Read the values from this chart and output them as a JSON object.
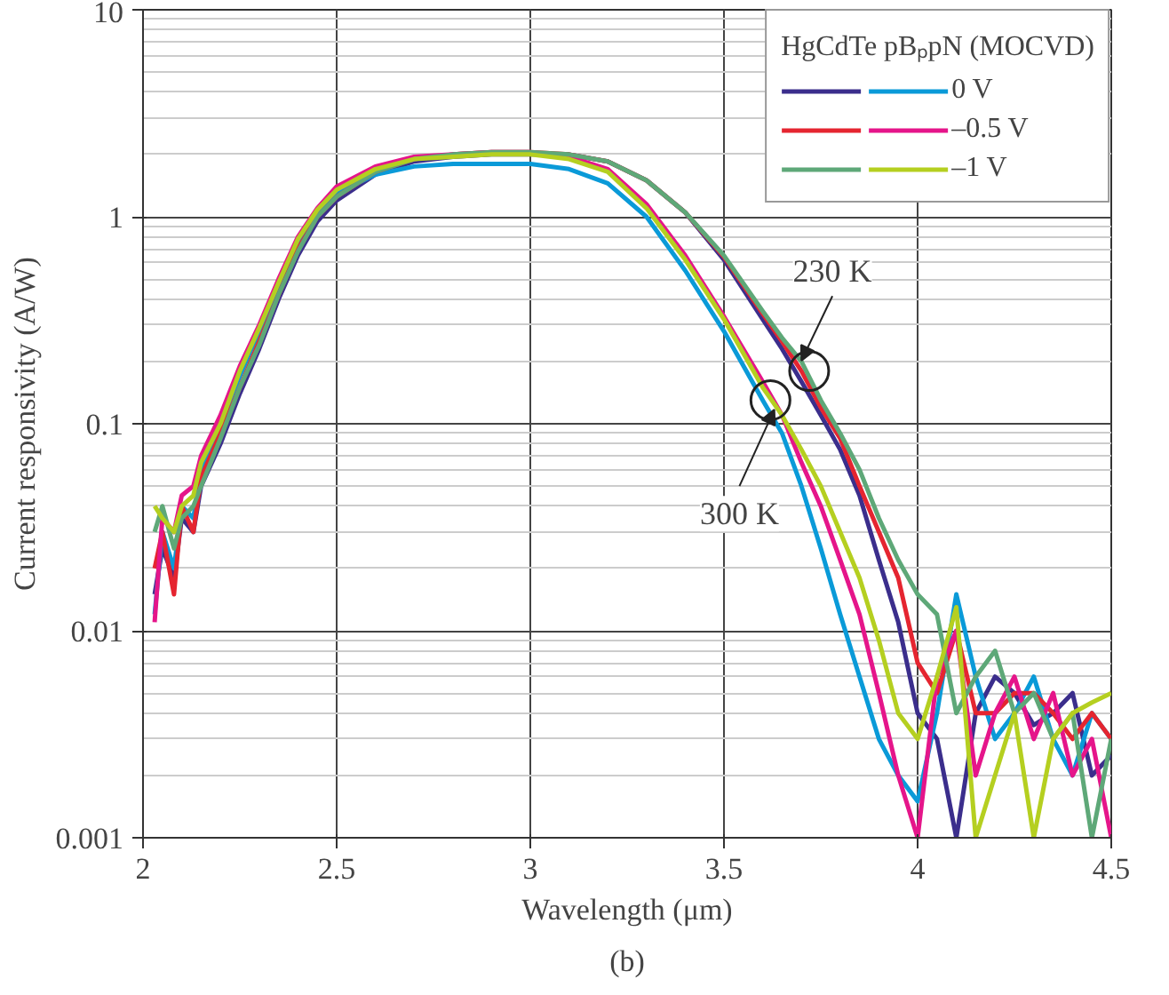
{
  "chart_data": {
    "type": "line",
    "xlabel": "Wavelength (μm)",
    "ylabel": "Current responsivity (A/W)",
    "legend_title": "HgCdTe pBₚpN (MOCVD)",
    "x": [
      2.03,
      2.05,
      2.08,
      2.1,
      2.13,
      2.15,
      2.2,
      2.25,
      2.3,
      2.35,
      2.4,
      2.45,
      2.5,
      2.6,
      2.7,
      2.8,
      2.9,
      3.0,
      3.1,
      3.2,
      3.3,
      3.4,
      3.5,
      3.6,
      3.65,
      3.7,
      3.75,
      3.8,
      3.85,
      3.9,
      3.95,
      4.0,
      4.05,
      4.1,
      4.15,
      4.2,
      4.25,
      4.3,
      4.35,
      4.4,
      4.45,
      4.5
    ],
    "series": [
      {
        "color": "#3b2e8c",
        "values": [
          0.015,
          0.025,
          0.018,
          0.035,
          0.03,
          0.05,
          0.08,
          0.14,
          0.23,
          0.4,
          0.65,
          0.95,
          1.2,
          1.6,
          1.85,
          1.95,
          2.0,
          2.0,
          2.0,
          1.85,
          1.5,
          1.05,
          0.62,
          0.32,
          0.23,
          0.16,
          0.11,
          0.075,
          0.045,
          0.022,
          0.011,
          0.004,
          0.003,
          0.001,
          0.004,
          0.006,
          0.005,
          0.0035,
          0.004,
          0.005,
          0.002,
          0.0025
        ]
      },
      {
        "name": "0 V",
        "color": "#0a9ad8",
        "values": [
          0.012,
          0.03,
          0.02,
          0.04,
          0.035,
          0.06,
          0.1,
          0.17,
          0.28,
          0.45,
          0.75,
          1.05,
          1.3,
          1.6,
          1.75,
          1.8,
          1.8,
          1.8,
          1.7,
          1.45,
          1.0,
          0.55,
          0.28,
          0.13,
          0.09,
          0.05,
          0.025,
          0.012,
          0.006,
          0.003,
          0.002,
          0.0015,
          0.004,
          0.015,
          0.006,
          0.003,
          0.004,
          0.006,
          0.003,
          0.002,
          0.004,
          0.003
        ]
      },
      {
        "color": "#e52530",
        "values": [
          0.02,
          0.03,
          0.015,
          0.04,
          0.03,
          0.055,
          0.09,
          0.15,
          0.25,
          0.42,
          0.7,
          1.0,
          1.25,
          1.65,
          1.9,
          2.0,
          2.05,
          2.05,
          2.0,
          1.85,
          1.5,
          1.05,
          0.64,
          0.34,
          0.25,
          0.18,
          0.12,
          0.085,
          0.05,
          0.03,
          0.018,
          0.007,
          0.005,
          0.01,
          0.004,
          0.004,
          0.005,
          0.005,
          0.004,
          0.003,
          0.004,
          0.003
        ]
      },
      {
        "name": "–0.5 V",
        "color": "#e5158a",
        "values": [
          0.011,
          0.035,
          0.03,
          0.045,
          0.05,
          0.07,
          0.11,
          0.19,
          0.3,
          0.5,
          0.8,
          1.1,
          1.4,
          1.75,
          1.95,
          2.0,
          2.05,
          2.05,
          1.95,
          1.7,
          1.15,
          0.65,
          0.33,
          0.16,
          0.11,
          0.065,
          0.04,
          0.022,
          0.012,
          0.005,
          0.002,
          0.001,
          0.006,
          0.01,
          0.002,
          0.004,
          0.006,
          0.003,
          0.005,
          0.002,
          0.003,
          0.001
        ]
      },
      {
        "color": "#5ea878",
        "values": [
          0.03,
          0.04,
          0.025,
          0.035,
          0.04,
          0.05,
          0.085,
          0.15,
          0.24,
          0.42,
          0.68,
          1.0,
          1.25,
          1.65,
          1.9,
          2.0,
          2.05,
          2.05,
          2.0,
          1.85,
          1.5,
          1.05,
          0.65,
          0.35,
          0.26,
          0.2,
          0.13,
          0.09,
          0.06,
          0.035,
          0.022,
          0.015,
          0.012,
          0.004,
          0.006,
          0.008,
          0.004,
          0.005,
          0.003,
          0.004,
          0.001,
          0.003
        ]
      },
      {
        "name": "–1 V",
        "color": "#b5cf20",
        "values": [
          0.04,
          0.035,
          0.03,
          0.04,
          0.045,
          0.065,
          0.1,
          0.18,
          0.29,
          0.48,
          0.78,
          1.08,
          1.35,
          1.7,
          1.9,
          1.95,
          2.0,
          2.0,
          1.9,
          1.65,
          1.1,
          0.62,
          0.32,
          0.15,
          0.11,
          0.075,
          0.05,
          0.03,
          0.018,
          0.009,
          0.004,
          0.003,
          0.006,
          0.013,
          0.001,
          0.002,
          0.004,
          0.001,
          0.003,
          0.004,
          0.0045,
          0.005
        ]
      }
    ],
    "xlim": [
      2,
      4.5
    ],
    "xticks": [
      2,
      2.5,
      3,
      3.5,
      4,
      4.5
    ],
    "ylim": [
      0.001,
      10
    ],
    "yticks": [
      0.001,
      0.01,
      0.1,
      1,
      10
    ],
    "log": "y",
    "grid": true,
    "legend": "top right",
    "line_style": "solid",
    "marker": "none",
    "annotations": [
      {
        "text": "230 K",
        "x": 3.72,
        "y": 0.18
      },
      {
        "text": "300 K",
        "x": 3.62,
        "y": 0.13
      },
      "(b)"
    ]
  }
}
